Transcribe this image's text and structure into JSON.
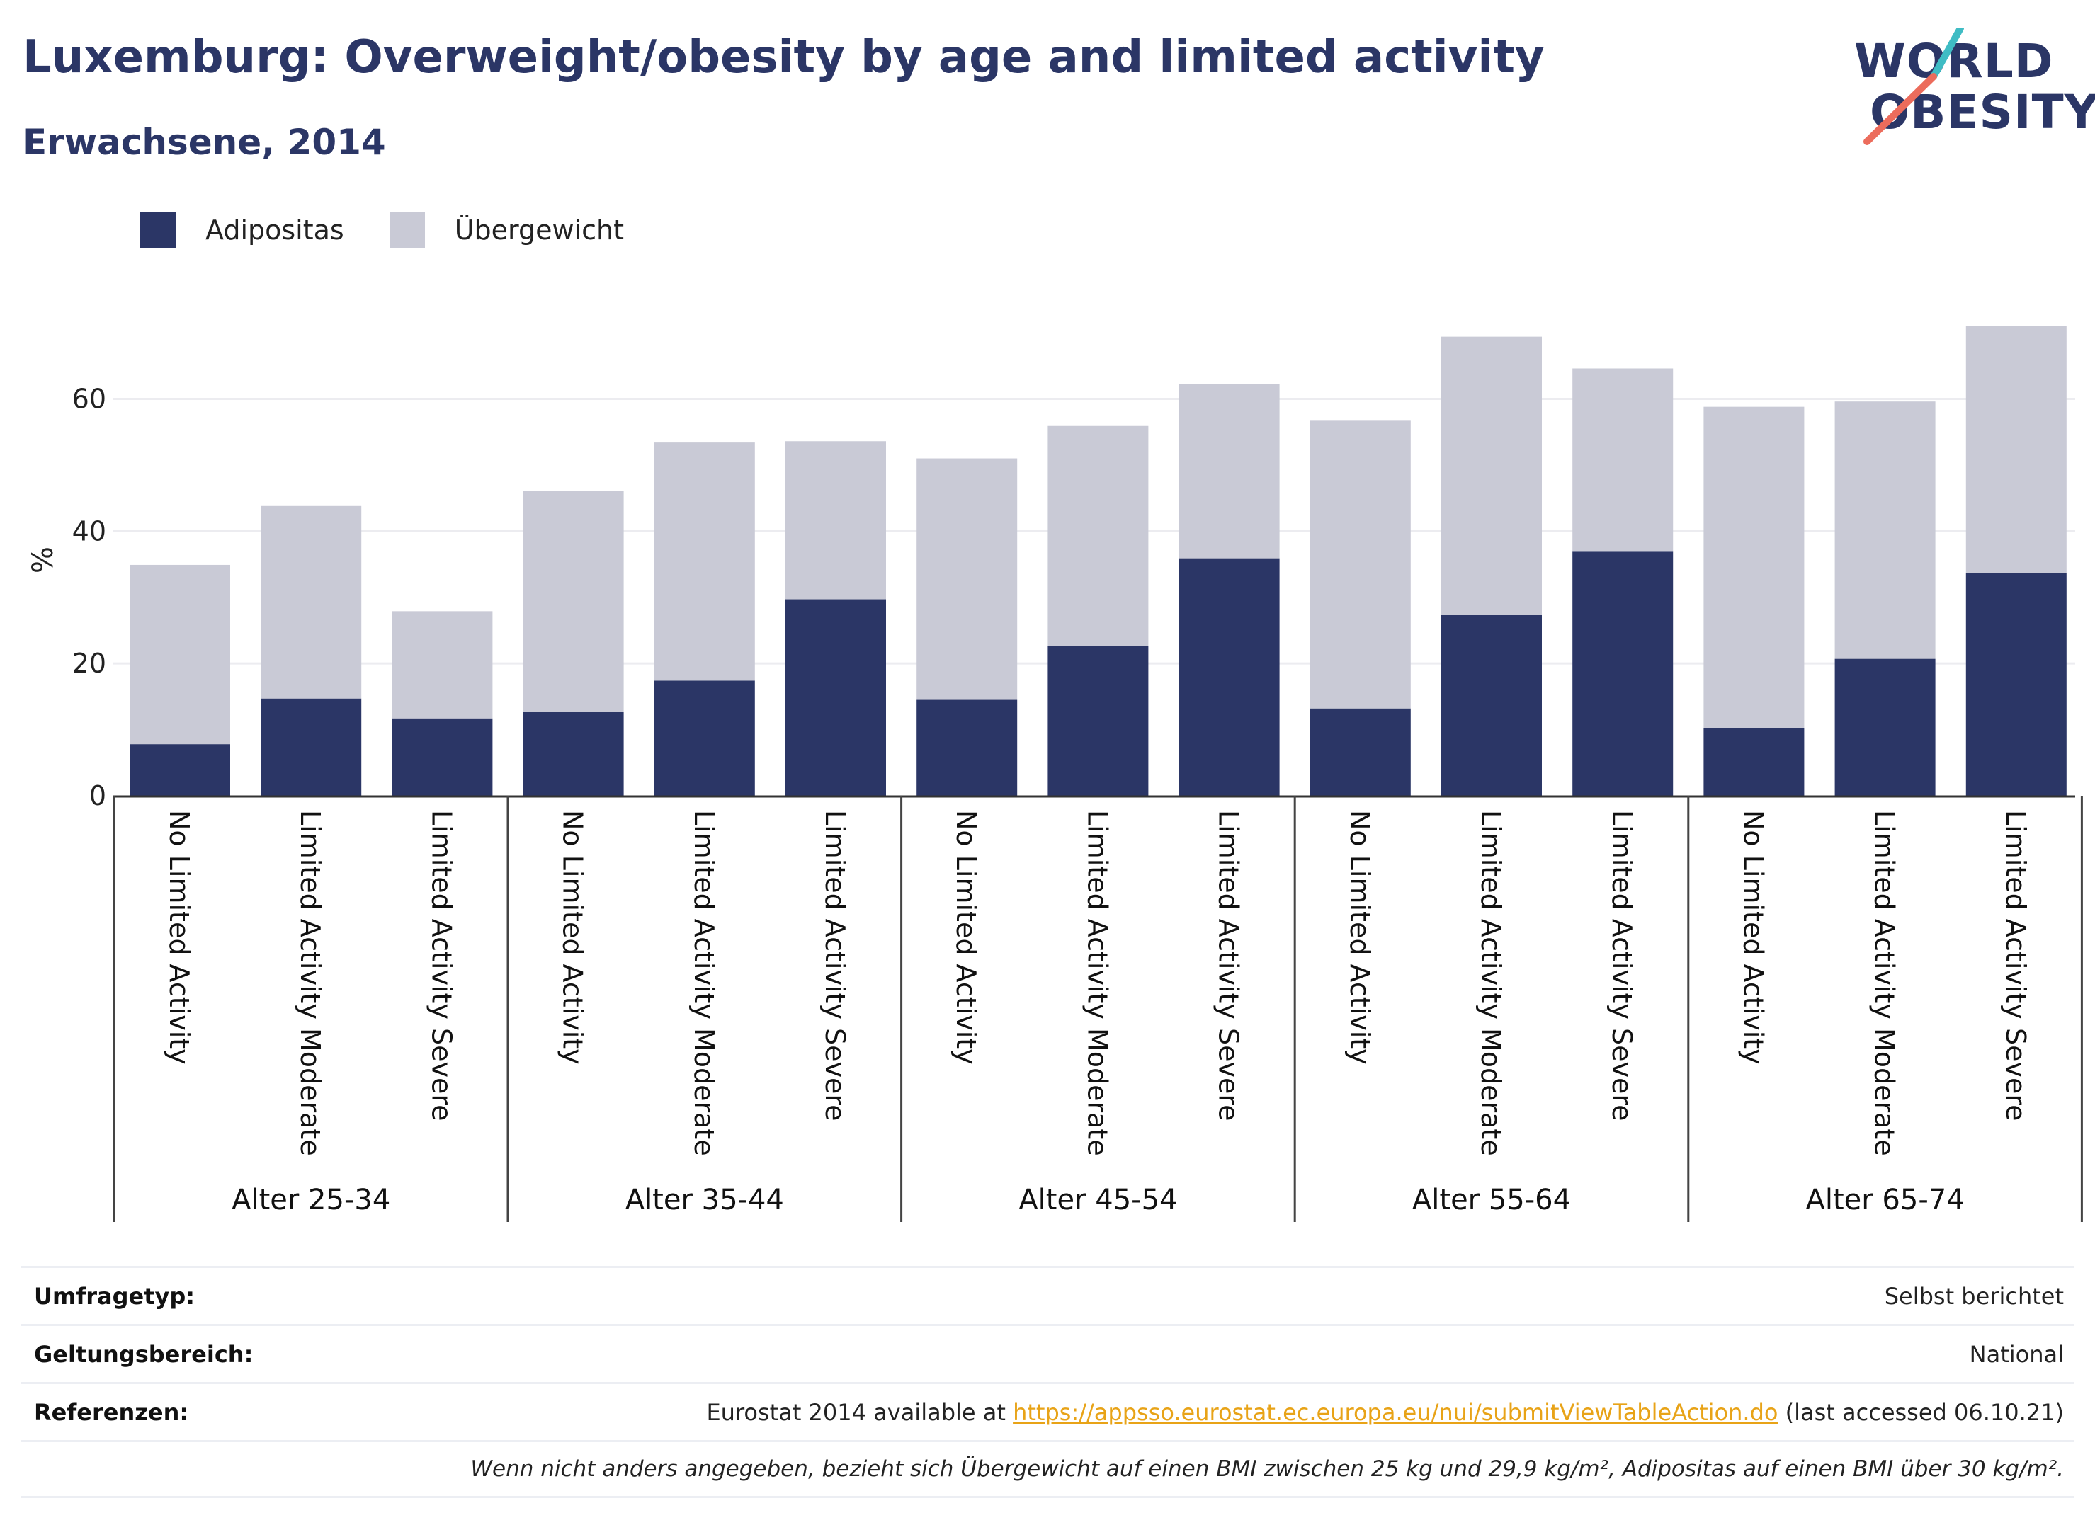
{
  "header": {
    "title": "Luxemburg: Overweight/obesity by age and limited activity",
    "subtitle": "Erwachsene, 2014"
  },
  "logo": {
    "line1": "WORLD",
    "line2": "OBESITY",
    "colors": {
      "navy": "#2b3666",
      "teal": "#3fbcc4",
      "coral": "#ec6c5c"
    }
  },
  "colors": {
    "adipositas": "#2b3666",
    "uebergewicht": "#c9cad6",
    "grid": "#ececf0",
    "axis": "#333333"
  },
  "chart_data": {
    "type": "bar",
    "stacked": true,
    "ylabel": "%",
    "ylim": [
      0,
      73
    ],
    "yticks": [
      0,
      20,
      40,
      60
    ],
    "grid": true,
    "legend_position": "top-left",
    "groups": [
      "Alter 25-34",
      "Alter 35-44",
      "Alter 45-54",
      "Alter 55-64",
      "Alter 65-74"
    ],
    "subcategories": [
      "No Limited Activity",
      "Limited Activity Moderate",
      "Limited Activity Severe"
    ],
    "series": [
      {
        "name": "Adipositas",
        "color": "#2b3666",
        "values": [
          7.8,
          14.7,
          11.7,
          12.7,
          17.4,
          29.7,
          14.5,
          22.6,
          35.9,
          13.2,
          27.3,
          37.0,
          10.2,
          20.7,
          33.7
        ]
      },
      {
        "name": "Übergewicht",
        "color": "#c9cad6",
        "values": [
          27.1,
          29.1,
          16.2,
          33.4,
          36.0,
          23.9,
          36.5,
          33.3,
          26.3,
          43.6,
          42.1,
          27.6,
          48.6,
          38.9,
          37.3
        ]
      }
    ]
  },
  "footer": {
    "rows": [
      {
        "label": "Umfragetyp:",
        "value": "Selbst berichtet"
      },
      {
        "label": "Geltungsbereich:",
        "value": "National"
      }
    ],
    "references_label": "Referenzen:",
    "references_prefix": "Eurostat 2014 available at ",
    "references_link": "https://appsso.eurostat.ec.europa.eu/nui/submitViewTableAction.do",
    "references_suffix": " (last accessed 06.10.21)",
    "note": "Wenn nicht anders angegeben, bezieht sich Übergewicht auf einen BMI zwischen 25 kg und 29,9 kg/m², Adipositas auf einen BMI über 30 kg/m²."
  }
}
